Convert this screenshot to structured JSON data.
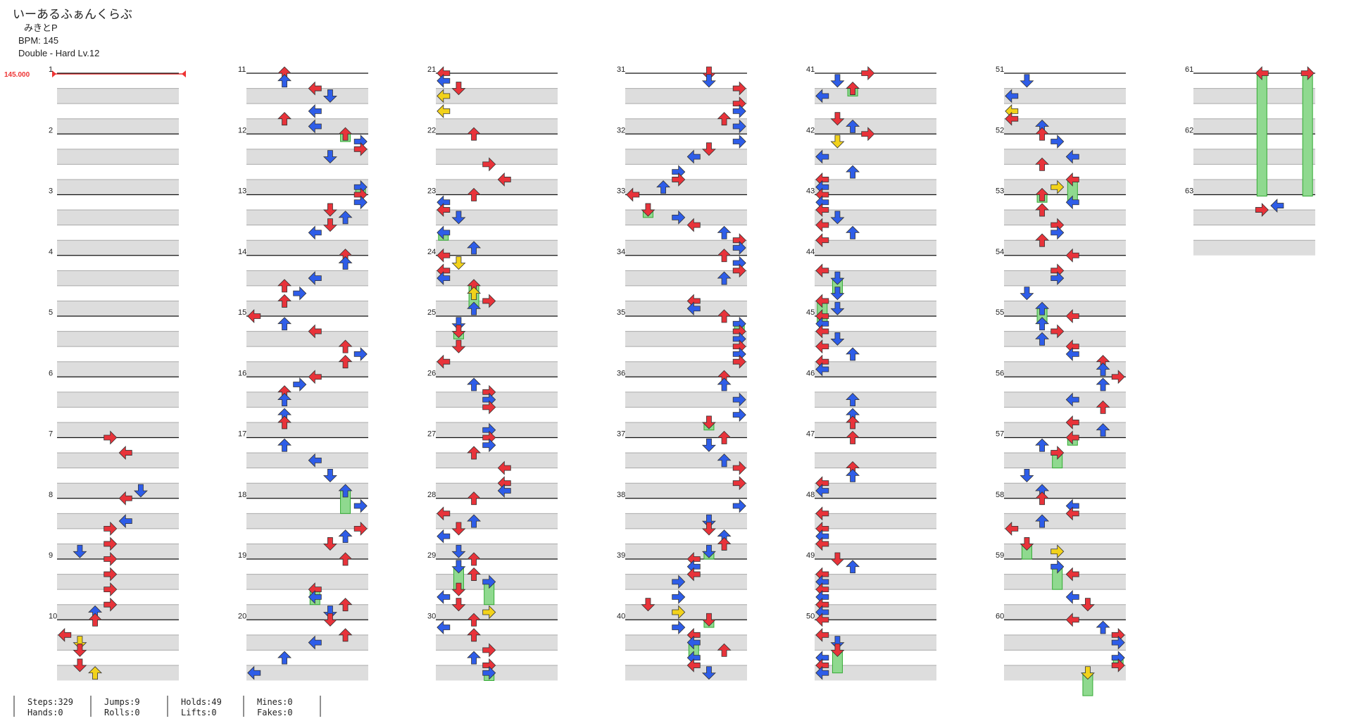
{
  "header": {
    "title": "いーあるふぁんくらぶ",
    "artist": "みきとP",
    "bpm": "BPM: 145",
    "chart": "Double - Hard  Lv.12"
  },
  "bpm_marker": "145.000",
  "measures": [
    "1",
    "2",
    "3",
    "4",
    "5",
    "6",
    "7",
    "8",
    "9",
    "10",
    "11",
    "12",
    "13",
    "14",
    "15",
    "16",
    "17",
    "18",
    "19",
    "20",
    "21",
    "22",
    "23",
    "24",
    "25",
    "26",
    "27",
    "28",
    "29",
    "30",
    "31",
    "32",
    "33",
    "34",
    "35",
    "36",
    "37",
    "38",
    "39",
    "40",
    "41",
    "42",
    "43",
    "44",
    "45",
    "46",
    "47",
    "48",
    "49",
    "50",
    "51",
    "52",
    "53",
    "54",
    "55",
    "56",
    "57",
    "58",
    "59",
    "60",
    "61",
    "62",
    "63"
  ],
  "stats": [
    [
      "Steps:329",
      "Hands:0"
    ],
    [
      "Jumps:9",
      "Rolls:0"
    ],
    [
      "Holds:49",
      "Lifts:0"
    ],
    [
      "Mines:0",
      "Fakes:0"
    ]
  ]
}
